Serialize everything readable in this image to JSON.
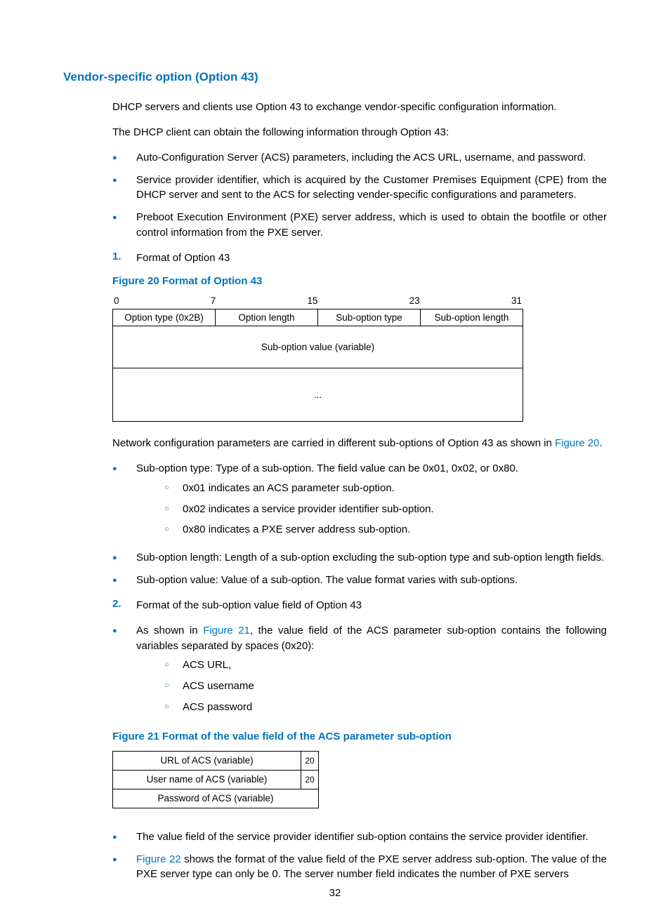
{
  "heading": "Vendor-specific option (Option 43)",
  "p1": "DHCP servers and clients use Option 43 to exchange vendor-specific configuration information.",
  "p2": "The DHCP client can obtain the following information through Option 43:",
  "b1a": "Auto-Configuration Server (ACS) parameters, including the ACS URL, username, and password.",
  "b1b": "Service provider identifier, which is acquired by the Customer Premises Equipment (CPE) from the DHCP server and sent to the ACS for selecting vender-specific configurations and parameters.",
  "b1c": "Preboot Execution Environment (PXE) server address, which is used to obtain the bootfile or other control information from the PXE server.",
  "n1_num": "1.",
  "n1_txt": "Format of Option 43",
  "fig20_caption": "Figure 20 Format of Option 43",
  "fig20": {
    "bits": [
      "0",
      "7",
      "15",
      "23",
      "31"
    ],
    "hdr": [
      "Option type (0x2B)",
      "Option length",
      "Sub-option type",
      "Sub-option length"
    ],
    "row2": "Sub-option value (variable)",
    "row3": "..."
  },
  "p3_a": "Network configuration parameters are carried in different sub-options of Option 43 as shown in ",
  "p3_link": "Figure 20",
  "p3_b": ".",
  "b2a": "Sub-option type: Type of a sub-option. The field value can be 0x01, 0x02, or 0x80.",
  "b2a_s1": "0x01 indicates an ACS parameter sub-option.",
  "b2a_s2": "0x02 indicates a service provider identifier sub-option.",
  "b2a_s3": "0x80 indicates a PXE server address sub-option.",
  "b2b": "Sub-option length: Length of a sub-option excluding the sub-option type and sub-option length fields.",
  "b2c": "Sub-option value: Value of a sub-option. The value format varies with sub-options.",
  "n2_num": "2.",
  "n2_txt": "Format of the sub-option value field of Option 43",
  "b3a_a": "As shown in ",
  "b3a_link": "Figure 21",
  "b3a_b": ", the value field of the ACS parameter sub-option contains the following variables separated by spaces (0x20):",
  "b3a_s1": "ACS URL,",
  "b3a_s2": "ACS username",
  "b3a_s3": "ACS password",
  "fig21_caption": "Figure 21 Format of the value field of the ACS parameter sub-option",
  "fig21": {
    "r1_main": "URL of ACS (variable)",
    "r1_sp": "20",
    "r2_main": "User name of ACS (variable)",
    "r2_sp": "20",
    "r3_main": "Password of ACS (variable)"
  },
  "b4a": "The value field of the service provider identifier sub-option contains the service provider identifier.",
  "b4b_link": "Figure 22",
  "b4b_rest": " shows the format of the value field of the PXE server address sub-option. The value of the PXE server type can only be 0. The server number field indicates the number of PXE servers",
  "pagenum": "32"
}
